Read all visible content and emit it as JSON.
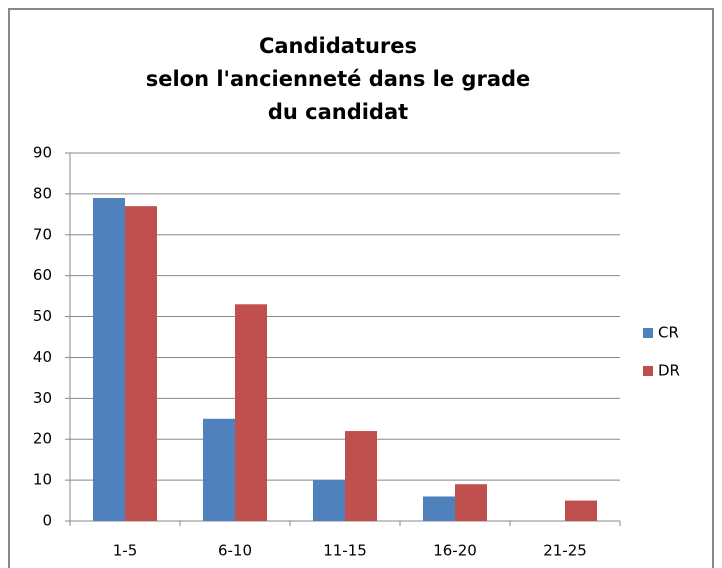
{
  "chart_data": {
    "type": "bar",
    "title": [
      "Candidatures",
      "selon l'ancienneté dans le grade",
      "du candidat"
    ],
    "categories": [
      "1-5",
      "6-10",
      "11-15",
      "16-20",
      "21-25"
    ],
    "series": [
      {
        "name": "CR",
        "color": "#4f81bd",
        "values": [
          79,
          25,
          10,
          6,
          0
        ]
      },
      {
        "name": "DR",
        "color": "#c0504d",
        "values": [
          77,
          53,
          22,
          9,
          5
        ]
      }
    ],
    "ylim": [
      0,
      90
    ],
    "yticks": [
      0,
      10,
      20,
      30,
      40,
      50,
      60,
      70,
      80,
      90
    ],
    "grid": true,
    "legend": "right"
  }
}
